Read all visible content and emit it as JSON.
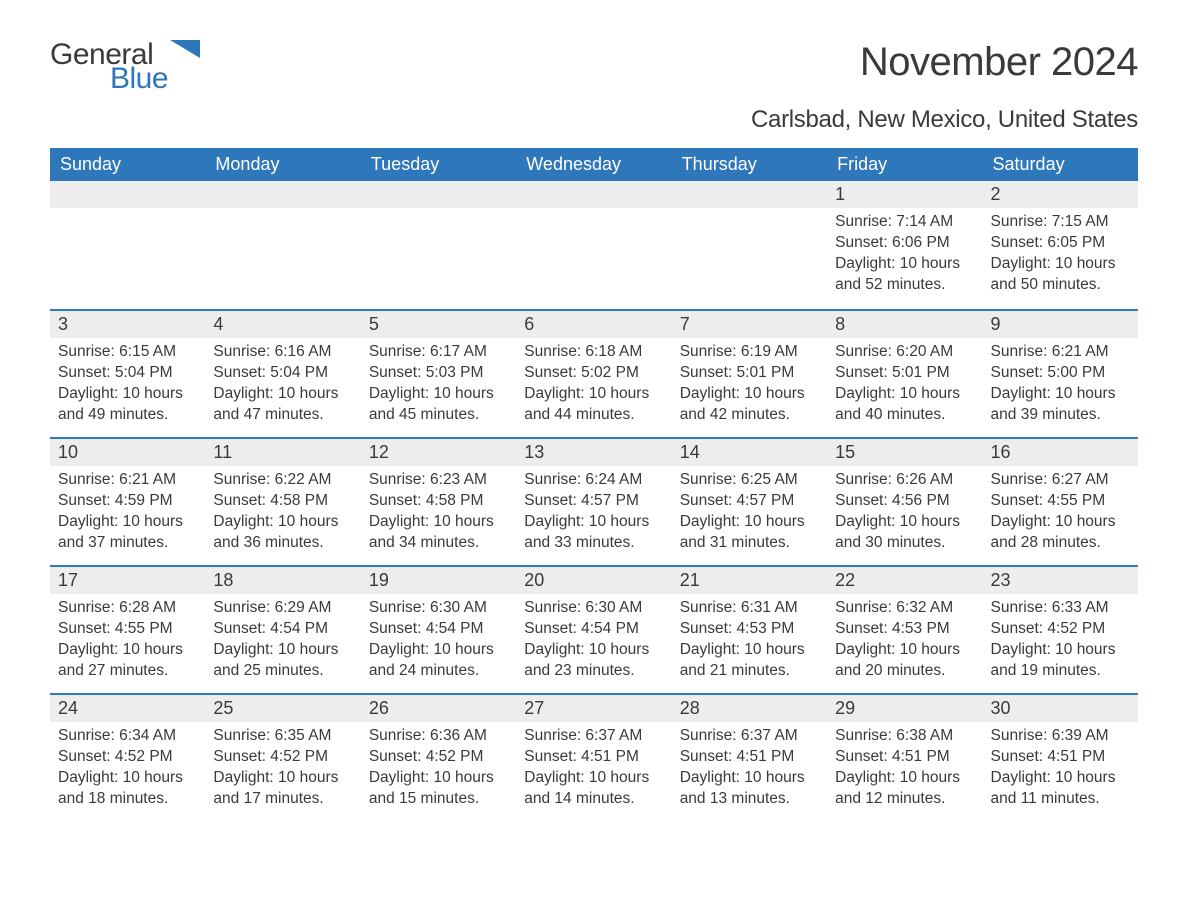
{
  "logo": {
    "word1": "General",
    "word2": "Blue"
  },
  "title": "November 2024",
  "location": "Carlsbad, New Mexico, United States",
  "colors": {
    "header_bg": "#2f77bb",
    "header_text": "#ffffff",
    "daynum_bg": "#ededed",
    "border": "#2f77bb",
    "text": "#3a3a3a",
    "logo_blue": "#2f77bb",
    "page_bg": "#ffffff"
  },
  "day_headers": [
    "Sunday",
    "Monday",
    "Tuesday",
    "Wednesday",
    "Thursday",
    "Friday",
    "Saturday"
  ],
  "weeks": [
    [
      {
        "num": "",
        "sunrise": "",
        "sunset": "",
        "daylight": ""
      },
      {
        "num": "",
        "sunrise": "",
        "sunset": "",
        "daylight": ""
      },
      {
        "num": "",
        "sunrise": "",
        "sunset": "",
        "daylight": ""
      },
      {
        "num": "",
        "sunrise": "",
        "sunset": "",
        "daylight": ""
      },
      {
        "num": "",
        "sunrise": "",
        "sunset": "",
        "daylight": ""
      },
      {
        "num": "1",
        "sunrise": "Sunrise: 7:14 AM",
        "sunset": "Sunset: 6:06 PM",
        "daylight": "Daylight: 10 hours and 52 minutes."
      },
      {
        "num": "2",
        "sunrise": "Sunrise: 7:15 AM",
        "sunset": "Sunset: 6:05 PM",
        "daylight": "Daylight: 10 hours and 50 minutes."
      }
    ],
    [
      {
        "num": "3",
        "sunrise": "Sunrise: 6:15 AM",
        "sunset": "Sunset: 5:04 PM",
        "daylight": "Daylight: 10 hours and 49 minutes."
      },
      {
        "num": "4",
        "sunrise": "Sunrise: 6:16 AM",
        "sunset": "Sunset: 5:04 PM",
        "daylight": "Daylight: 10 hours and 47 minutes."
      },
      {
        "num": "5",
        "sunrise": "Sunrise: 6:17 AM",
        "sunset": "Sunset: 5:03 PM",
        "daylight": "Daylight: 10 hours and 45 minutes."
      },
      {
        "num": "6",
        "sunrise": "Sunrise: 6:18 AM",
        "sunset": "Sunset: 5:02 PM",
        "daylight": "Daylight: 10 hours and 44 minutes."
      },
      {
        "num": "7",
        "sunrise": "Sunrise: 6:19 AM",
        "sunset": "Sunset: 5:01 PM",
        "daylight": "Daylight: 10 hours and 42 minutes."
      },
      {
        "num": "8",
        "sunrise": "Sunrise: 6:20 AM",
        "sunset": "Sunset: 5:01 PM",
        "daylight": "Daylight: 10 hours and 40 minutes."
      },
      {
        "num": "9",
        "sunrise": "Sunrise: 6:21 AM",
        "sunset": "Sunset: 5:00 PM",
        "daylight": "Daylight: 10 hours and 39 minutes."
      }
    ],
    [
      {
        "num": "10",
        "sunrise": "Sunrise: 6:21 AM",
        "sunset": "Sunset: 4:59 PM",
        "daylight": "Daylight: 10 hours and 37 minutes."
      },
      {
        "num": "11",
        "sunrise": "Sunrise: 6:22 AM",
        "sunset": "Sunset: 4:58 PM",
        "daylight": "Daylight: 10 hours and 36 minutes."
      },
      {
        "num": "12",
        "sunrise": "Sunrise: 6:23 AM",
        "sunset": "Sunset: 4:58 PM",
        "daylight": "Daylight: 10 hours and 34 minutes."
      },
      {
        "num": "13",
        "sunrise": "Sunrise: 6:24 AM",
        "sunset": "Sunset: 4:57 PM",
        "daylight": "Daylight: 10 hours and 33 minutes."
      },
      {
        "num": "14",
        "sunrise": "Sunrise: 6:25 AM",
        "sunset": "Sunset: 4:57 PM",
        "daylight": "Daylight: 10 hours and 31 minutes."
      },
      {
        "num": "15",
        "sunrise": "Sunrise: 6:26 AM",
        "sunset": "Sunset: 4:56 PM",
        "daylight": "Daylight: 10 hours and 30 minutes."
      },
      {
        "num": "16",
        "sunrise": "Sunrise: 6:27 AM",
        "sunset": "Sunset: 4:55 PM",
        "daylight": "Daylight: 10 hours and 28 minutes."
      }
    ],
    [
      {
        "num": "17",
        "sunrise": "Sunrise: 6:28 AM",
        "sunset": "Sunset: 4:55 PM",
        "daylight": "Daylight: 10 hours and 27 minutes."
      },
      {
        "num": "18",
        "sunrise": "Sunrise: 6:29 AM",
        "sunset": "Sunset: 4:54 PM",
        "daylight": "Daylight: 10 hours and 25 minutes."
      },
      {
        "num": "19",
        "sunrise": "Sunrise: 6:30 AM",
        "sunset": "Sunset: 4:54 PM",
        "daylight": "Daylight: 10 hours and 24 minutes."
      },
      {
        "num": "20",
        "sunrise": "Sunrise: 6:30 AM",
        "sunset": "Sunset: 4:54 PM",
        "daylight": "Daylight: 10 hours and 23 minutes."
      },
      {
        "num": "21",
        "sunrise": "Sunrise: 6:31 AM",
        "sunset": "Sunset: 4:53 PM",
        "daylight": "Daylight: 10 hours and 21 minutes."
      },
      {
        "num": "22",
        "sunrise": "Sunrise: 6:32 AM",
        "sunset": "Sunset: 4:53 PM",
        "daylight": "Daylight: 10 hours and 20 minutes."
      },
      {
        "num": "23",
        "sunrise": "Sunrise: 6:33 AM",
        "sunset": "Sunset: 4:52 PM",
        "daylight": "Daylight: 10 hours and 19 minutes."
      }
    ],
    [
      {
        "num": "24",
        "sunrise": "Sunrise: 6:34 AM",
        "sunset": "Sunset: 4:52 PM",
        "daylight": "Daylight: 10 hours and 18 minutes."
      },
      {
        "num": "25",
        "sunrise": "Sunrise: 6:35 AM",
        "sunset": "Sunset: 4:52 PM",
        "daylight": "Daylight: 10 hours and 17 minutes."
      },
      {
        "num": "26",
        "sunrise": "Sunrise: 6:36 AM",
        "sunset": "Sunset: 4:52 PM",
        "daylight": "Daylight: 10 hours and 15 minutes."
      },
      {
        "num": "27",
        "sunrise": "Sunrise: 6:37 AM",
        "sunset": "Sunset: 4:51 PM",
        "daylight": "Daylight: 10 hours and 14 minutes."
      },
      {
        "num": "28",
        "sunrise": "Sunrise: 6:37 AM",
        "sunset": "Sunset: 4:51 PM",
        "daylight": "Daylight: 10 hours and 13 minutes."
      },
      {
        "num": "29",
        "sunrise": "Sunrise: 6:38 AM",
        "sunset": "Sunset: 4:51 PM",
        "daylight": "Daylight: 10 hours and 12 minutes."
      },
      {
        "num": "30",
        "sunrise": "Sunrise: 6:39 AM",
        "sunset": "Sunset: 4:51 PM",
        "daylight": "Daylight: 10 hours and 11 minutes."
      }
    ]
  ]
}
